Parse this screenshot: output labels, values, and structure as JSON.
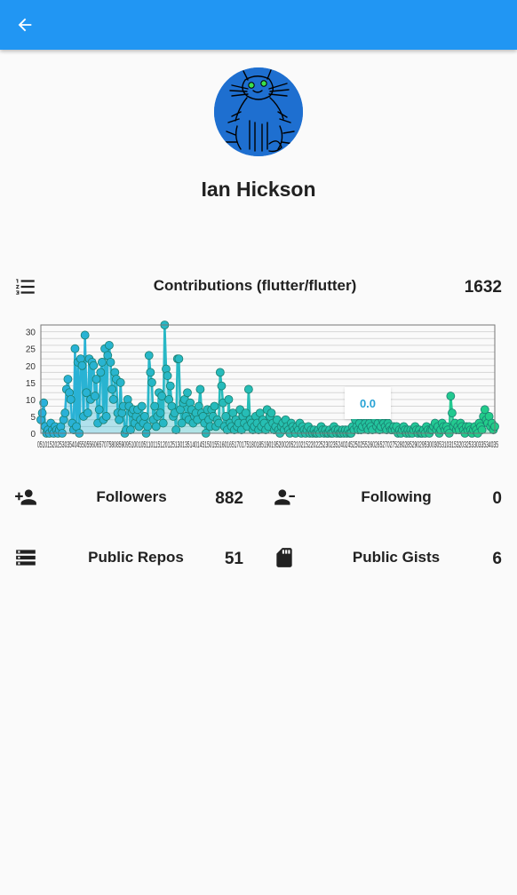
{
  "appbar": {
    "back_icon": "arrow-back-icon",
    "color": "#2196f3"
  },
  "profile": {
    "name": "Ian Hickson",
    "avatar_icon": "cat-avatar-icon"
  },
  "contributions": {
    "icon": "format-list-numbered-icon",
    "label": "Contributions (flutter/flutter)",
    "total": "1632"
  },
  "stats": {
    "followers": {
      "icon": "person-add-icon",
      "label": "Followers",
      "value": "882"
    },
    "following": {
      "icon": "person-remove-icon",
      "label": "Following",
      "value": "0"
    },
    "public_repos": {
      "icon": "storage-icon",
      "label": "Public Repos",
      "value": "51"
    },
    "public_gists": {
      "icon": "sd-card-icon",
      "label": "Public Gists",
      "value": "6"
    }
  },
  "chart_data": {
    "type": "line",
    "ylim": [
      0,
      32
    ],
    "yticks": [
      "0",
      "5",
      "10",
      "15",
      "20",
      "25",
      "30"
    ],
    "xtick_labels": "0510152025303540455055606570758085909510010511011512012513013514014515015516016517017518018519019520020521021522022523023524024525025526026527027528028529029530030531031532032533033534035",
    "grid": true,
    "tooltip": "0.0",
    "color_start": "#2ab0dc",
    "color_end": "#22cc88",
    "values": [
      4,
      6,
      9,
      2,
      0,
      1,
      0,
      3,
      1,
      0,
      2,
      1,
      0,
      1,
      2,
      0,
      4,
      6,
      13,
      16,
      12,
      10,
      3,
      1,
      25,
      2,
      21,
      0,
      22,
      20,
      5,
      29,
      12,
      6,
      22,
      10,
      21,
      20,
      11,
      16,
      3,
      7,
      18,
      21,
      4,
      25,
      5,
      23,
      26,
      21,
      13,
      10,
      18,
      16,
      6,
      4,
      15,
      6,
      8,
      0,
      1,
      10,
      8,
      1,
      6,
      7,
      3,
      5,
      7,
      2,
      4,
      8,
      3,
      5,
      0,
      2,
      23,
      18,
      15,
      4,
      8,
      2,
      5,
      12,
      6,
      11,
      3,
      32,
      19,
      17,
      10,
      14,
      8,
      5,
      6,
      1,
      22,
      22,
      7,
      3,
      9,
      10,
      5,
      12,
      4,
      9,
      7,
      3,
      5,
      6,
      4,
      8,
      13,
      6,
      5,
      3,
      0,
      7,
      4,
      2,
      7,
      5,
      8,
      2,
      4,
      3,
      18,
      14,
      9,
      2,
      5,
      1,
      10,
      3,
      2,
      6,
      1,
      4,
      2,
      3,
      7,
      1,
      5,
      3,
      6,
      2,
      13,
      4,
      3,
      1,
      2,
      5,
      3,
      1,
      6,
      2,
      4,
      3,
      1,
      7,
      2,
      5,
      6,
      3,
      1,
      2,
      4,
      1,
      0,
      2,
      3,
      1,
      4,
      2,
      1,
      0,
      3,
      2,
      1,
      0,
      2,
      1,
      3,
      0,
      2,
      1,
      0,
      1,
      2,
      0,
      1,
      0,
      1,
      0,
      0,
      1,
      0,
      2,
      1,
      0,
      1,
      0,
      0,
      1,
      0,
      0,
      2,
      1,
      0,
      1,
      0,
      0,
      1,
      0,
      1,
      0,
      1,
      0,
      0,
      2,
      1,
      4,
      2,
      1,
      3,
      1,
      2,
      5,
      3,
      2,
      1,
      3,
      2,
      1,
      8,
      4,
      2,
      3,
      1,
      2,
      4,
      3,
      2,
      1,
      3,
      2,
      1,
      1,
      2,
      1,
      2,
      0,
      1,
      0,
      1,
      2,
      1,
      0,
      1,
      0,
      1,
      0,
      1,
      2,
      1,
      0,
      1,
      0,
      0,
      1,
      0,
      2,
      1,
      0,
      1,
      1,
      2,
      3,
      1,
      2,
      0,
      1,
      3,
      2,
      1,
      2,
      1,
      0,
      11,
      6,
      2,
      3,
      1,
      2,
      1,
      3,
      2,
      1,
      0,
      2,
      1,
      2,
      1,
      0,
      1,
      2,
      1,
      0,
      3,
      2,
      1,
      5,
      7,
      4,
      3,
      5,
      2,
      3,
      1,
      2
    ]
  }
}
